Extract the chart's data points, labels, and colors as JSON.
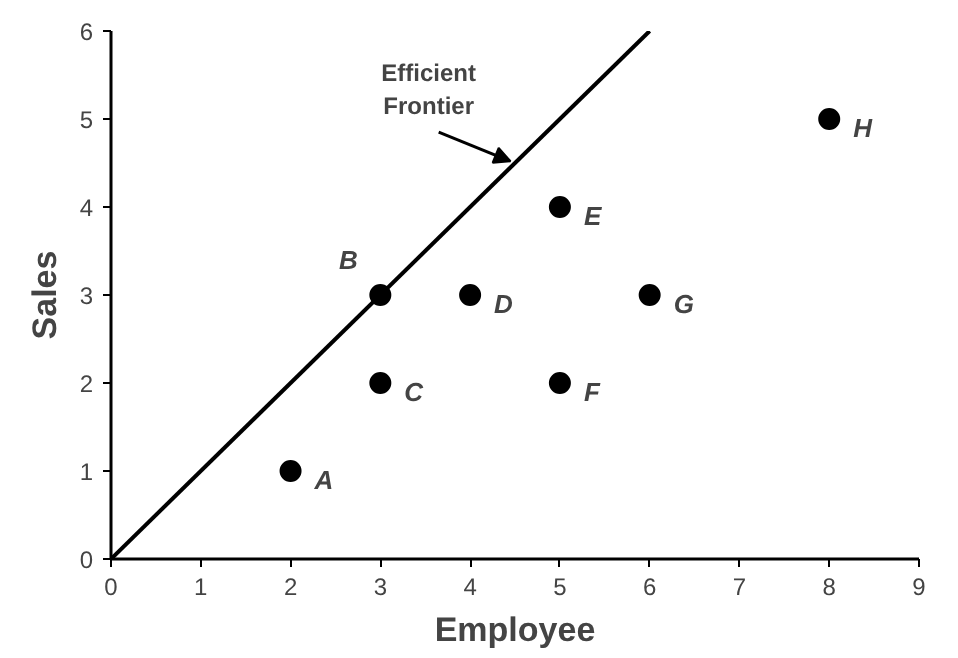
{
  "chart_data": {
    "type": "scatter",
    "xlabel": "Employee",
    "ylabel": "Sales",
    "xlim": [
      0,
      9
    ],
    "ylim": [
      0,
      6
    ],
    "xticks": [
      0,
      1,
      2,
      3,
      4,
      5,
      6,
      7,
      8,
      9
    ],
    "yticks": [
      0,
      1,
      2,
      3,
      4,
      5,
      6
    ],
    "grid": false,
    "marker": "circle",
    "series": [
      {
        "color": "#000000",
        "x": [
          2,
          3,
          3,
          4,
          5,
          5,
          6,
          8
        ],
        "values": [
          1,
          3,
          2,
          3,
          4,
          2,
          3,
          5
        ]
      },
      {
        "type": "line",
        "color": "#000000",
        "x": [
          0,
          6
        ],
        "values": [
          0,
          6
        ],
        "line_style": "solid",
        "marker": "none"
      }
    ],
    "annotations": [
      {
        "text": "A",
        "x": 2,
        "y": 1
      },
      {
        "text": "B",
        "x": 3,
        "y": 3
      },
      {
        "text": "C",
        "x": 3,
        "y": 2
      },
      {
        "text": "D",
        "x": 4,
        "y": 3
      },
      {
        "text": "E",
        "x": 5,
        "y": 4
      },
      {
        "text": "F",
        "x": 5,
        "y": 2
      },
      {
        "text": "G",
        "x": 6,
        "y": 3
      },
      {
        "text": "H",
        "x": 8,
        "y": 5
      },
      {
        "text": "Efficient\nFrontier",
        "x": 4.5,
        "y": 4.5
      }
    ]
  }
}
